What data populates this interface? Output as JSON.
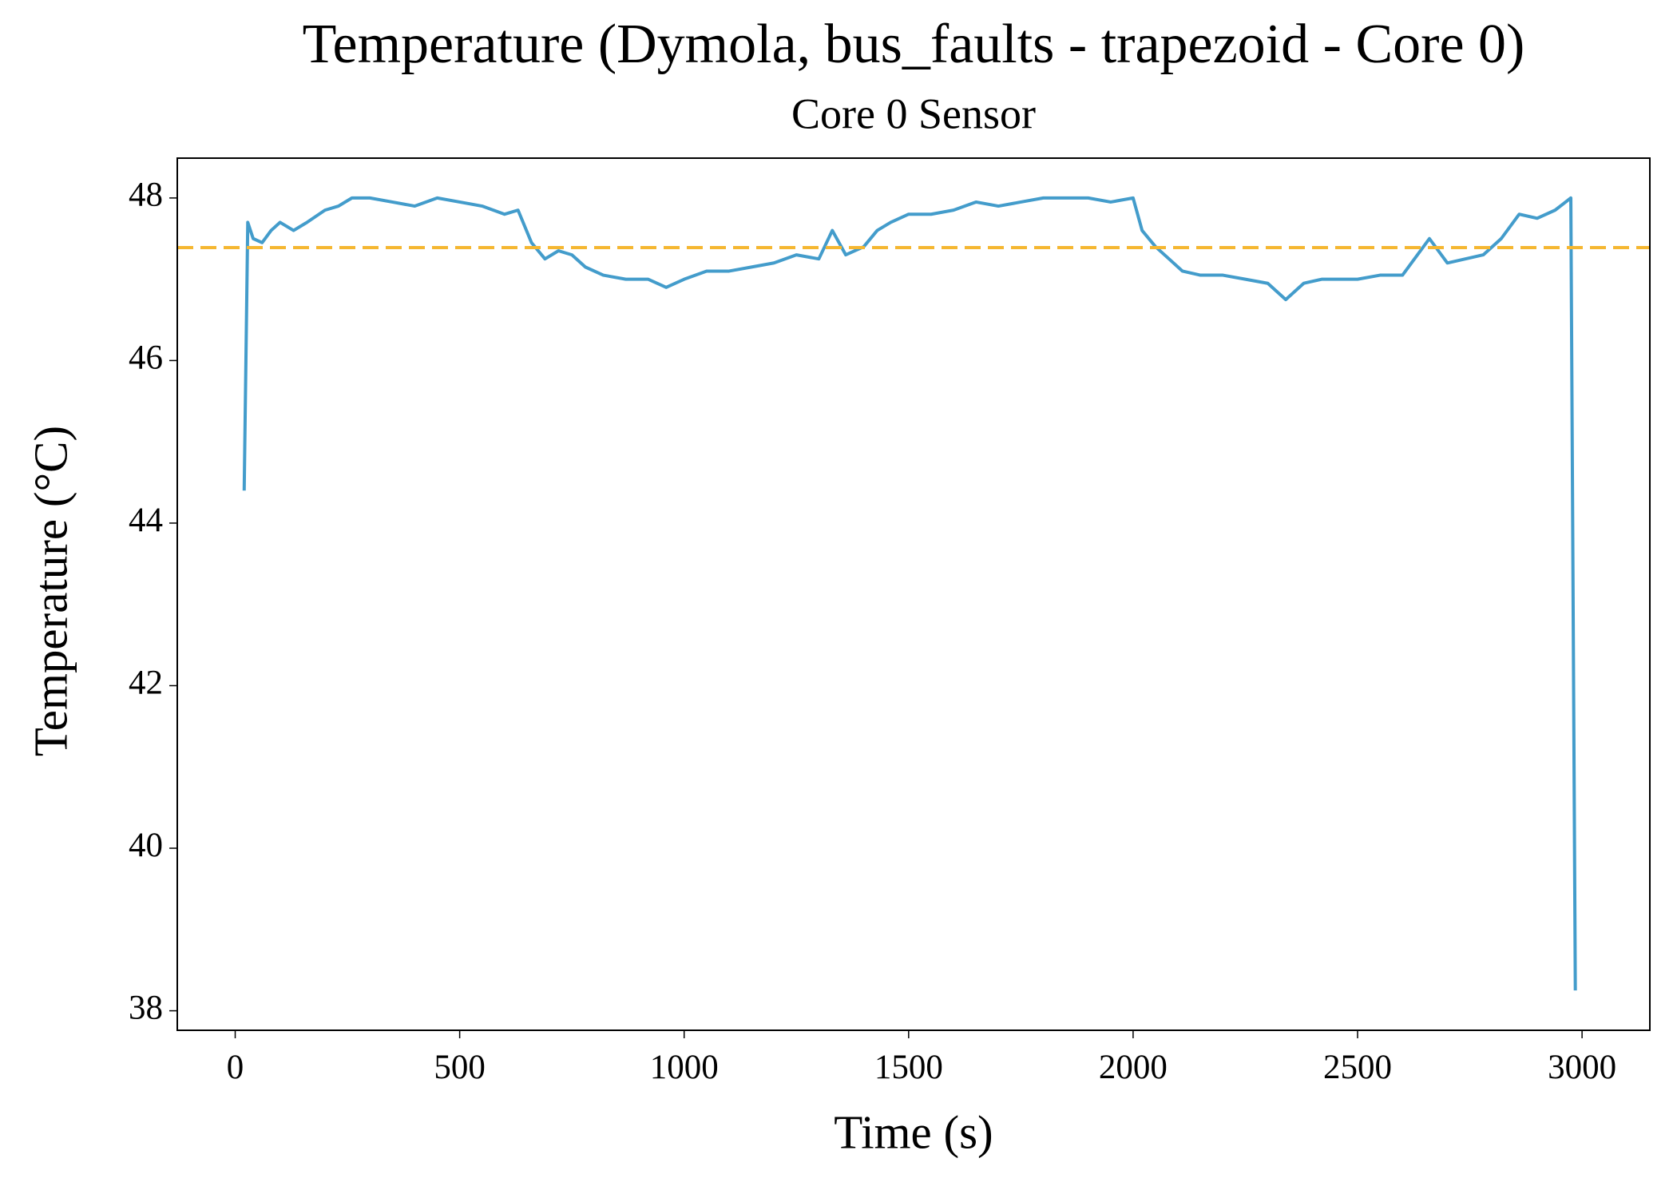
{
  "chart_data": {
    "type": "line",
    "title": "Temperature (Dymola, bus_faults - trapezoid - Core 0)",
    "subtitle": "Core 0 Sensor",
    "x_label": "Time (s)",
    "y_label": "Temperature (°C)",
    "xlim": [
      -129,
      3151
    ],
    "ylim": [
      37.76,
      48.49
    ],
    "xticks": [
      0,
      500,
      1000,
      1500,
      2000,
      2500,
      3000
    ],
    "yticks": [
      38,
      40,
      42,
      44,
      46,
      48
    ],
    "grid": false,
    "hline": {
      "value": 47.39,
      "color": "#f5b731",
      "style": "dashed"
    },
    "series": [
      {
        "color": "#439ccb",
        "x": [
          20,
          28,
          40,
          60,
          80,
          100,
          130,
          160,
          200,
          230,
          260,
          300,
          350,
          400,
          450,
          500,
          550,
          600,
          630,
          660,
          690,
          720,
          750,
          780,
          820,
          870,
          920,
          960,
          1000,
          1050,
          1100,
          1150,
          1200,
          1250,
          1300,
          1330,
          1360,
          1400,
          1430,
          1460,
          1500,
          1550,
          1600,
          1650,
          1700,
          1750,
          1800,
          1850,
          1900,
          1950,
          2000,
          2020,
          2050,
          2080,
          2110,
          2150,
          2200,
          2250,
          2300,
          2340,
          2380,
          2420,
          2460,
          2500,
          2550,
          2600,
          2660,
          2700,
          2740,
          2780,
          2820,
          2860,
          2900,
          2940,
          2975,
          2985
        ],
        "values": [
          44.4,
          47.7,
          47.5,
          47.45,
          47.6,
          47.7,
          47.6,
          47.7,
          47.85,
          47.9,
          48.0,
          48.0,
          47.95,
          47.9,
          48.0,
          47.95,
          47.9,
          47.8,
          47.85,
          47.45,
          47.25,
          47.35,
          47.3,
          47.15,
          47.05,
          47.0,
          47.0,
          46.9,
          47.0,
          47.1,
          47.1,
          47.15,
          47.2,
          47.3,
          47.25,
          47.6,
          47.3,
          47.4,
          47.6,
          47.7,
          47.8,
          47.8,
          47.85,
          47.95,
          47.9,
          47.95,
          48.0,
          48.0,
          48.0,
          47.95,
          48.0,
          47.6,
          47.4,
          47.25,
          47.1,
          47.05,
          47.05,
          47.0,
          46.95,
          46.75,
          46.95,
          47.0,
          47.0,
          47.0,
          47.05,
          47.05,
          47.5,
          47.2,
          47.25,
          47.3,
          47.5,
          47.8,
          47.75,
          47.85,
          48.0,
          38.25
        ]
      }
    ]
  }
}
